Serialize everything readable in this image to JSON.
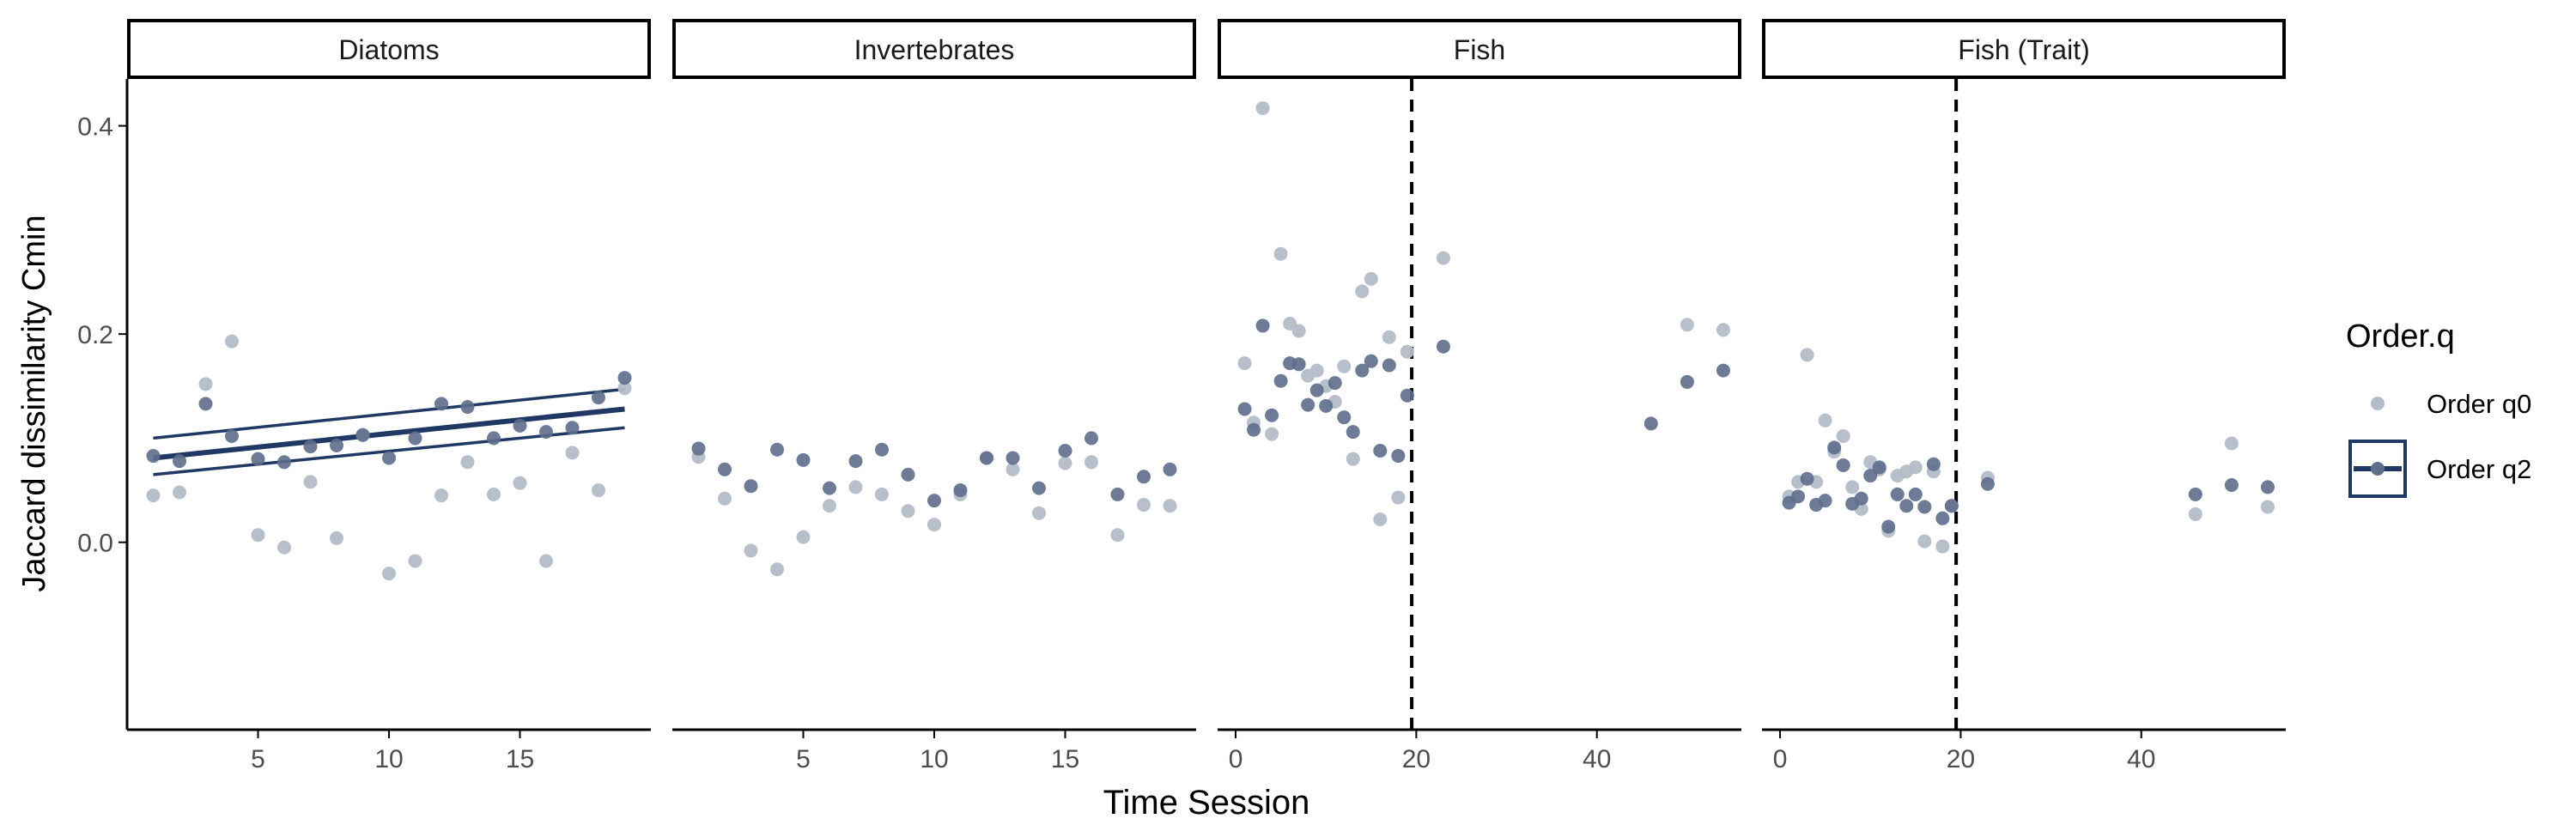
{
  "chart_data": {
    "type": "scatter",
    "ylabel": "Jaccard dissimilarity Cmin",
    "xlabel": "Time Session",
    "ylim": [
      -0.18,
      0.445
    ],
    "y_ticks": [
      0.0,
      0.2,
      0.4
    ],
    "grid": false,
    "colors": {
      "q0": "#b3bcc8",
      "q2": "#5d6d8c",
      "line": "#1f3864",
      "axis": "#000000",
      "strip_border": "#000000",
      "vline": "#000000"
    },
    "legend": {
      "title": "Order.q",
      "position": "right",
      "items": [
        {
          "key": "q0",
          "label": "Order q0"
        },
        {
          "key": "q2",
          "label": "Order q2"
        }
      ]
    },
    "panels": [
      {
        "title": "Diatoms",
        "xlim": [
          0,
          20
        ],
        "x_ticks": [
          5,
          10,
          15
        ],
        "vline": null,
        "series": {
          "q0": {
            "name": "Order q0",
            "x": [
              1,
              2,
              3,
              4,
              5,
              6,
              7,
              8,
              9,
              10,
              11,
              12,
              13,
              14,
              15,
              16,
              17,
              18,
              19
            ],
            "y": [
              0.045,
              0.048,
              0.152,
              0.193,
              0.007,
              -0.005,
              0.058,
              0.004,
              0.103,
              -0.03,
              -0.018,
              0.045,
              0.077,
              0.046,
              0.057,
              -0.018,
              0.086,
              0.05,
              0.148
            ]
          },
          "q2": {
            "name": "Order q2",
            "x": [
              1,
              2,
              3,
              4,
              5,
              6,
              7,
              8,
              9,
              10,
              11,
              12,
              13,
              14,
              15,
              16,
              17,
              18,
              19
            ],
            "y": [
              0.083,
              0.078,
              0.133,
              0.102,
              0.08,
              0.077,
              0.092,
              0.093,
              0.103,
              0.081,
              0.1,
              0.133,
              0.13,
              0.1,
              0.112,
              0.106,
              0.11,
              0.139,
              0.158
            ]
          }
        },
        "trend": {
          "x": [
            1,
            19
          ],
          "fit": [
            0.081,
            0.128
          ],
          "lower": [
            0.065,
            0.11
          ],
          "upper": [
            0.1,
            0.147
          ]
        }
      },
      {
        "title": "Invertebrates",
        "xlim": [
          0,
          20
        ],
        "x_ticks": [
          5,
          10,
          15
        ],
        "vline": null,
        "series": {
          "q0": {
            "name": "Order q0",
            "x": [
              1,
              2,
              3,
              4,
              5,
              6,
              7,
              8,
              9,
              10,
              11,
              12,
              13,
              14,
              15,
              16,
              17,
              18,
              19
            ],
            "y": [
              0.082,
              0.042,
              -0.008,
              -0.026,
              0.005,
              0.035,
              0.053,
              0.046,
              0.03,
              0.017,
              0.046,
              0.081,
              0.07,
              0.028,
              0.076,
              0.077,
              0.007,
              0.036,
              0.035
            ]
          },
          "q2": {
            "name": "Order q2",
            "x": [
              1,
              2,
              3,
              4,
              5,
              6,
              7,
              8,
              9,
              10,
              11,
              12,
              13,
              14,
              15,
              16,
              17,
              18,
              19
            ],
            "y": [
              0.09,
              0.07,
              0.054,
              0.089,
              0.079,
              0.052,
              0.078,
              0.089,
              0.065,
              0.04,
              0.05,
              0.081,
              0.081,
              0.052,
              0.088,
              0.1,
              0.046,
              0.063,
              0.07
            ]
          }
        },
        "trend": null
      },
      {
        "title": "Fish",
        "xlim": [
          -2,
          56
        ],
        "x_ticks": [
          0,
          20,
          40
        ],
        "vline": 19.5,
        "series": {
          "q0": {
            "name": "Order q0",
            "x": [
              1,
              2,
              3,
              4,
              5,
              6,
              7,
              8,
              9,
              10,
              11,
              12,
              13,
              14,
              15,
              16,
              17,
              18,
              19,
              23,
              50,
              54
            ],
            "y": [
              0.172,
              0.115,
              0.417,
              0.104,
              0.277,
              0.21,
              0.203,
              0.16,
              0.165,
              0.15,
              0.135,
              0.169,
              0.08,
              0.241,
              0.253,
              0.022,
              0.197,
              0.043,
              0.183,
              0.273,
              0.209,
              0.204
            ]
          },
          "q2": {
            "name": "Order q2",
            "x": [
              1,
              2,
              3,
              4,
              5,
              6,
              7,
              8,
              9,
              10,
              11,
              12,
              13,
              14,
              15,
              16,
              17,
              18,
              19,
              23,
              46,
              50,
              54
            ],
            "y": [
              0.128,
              0.108,
              0.208,
              0.122,
              0.155,
              0.172,
              0.171,
              0.132,
              0.146,
              0.131,
              0.153,
              0.12,
              0.106,
              0.165,
              0.174,
              0.088,
              0.17,
              0.083,
              0.141,
              0.188,
              0.114,
              0.154,
              0.165
            ]
          }
        },
        "trend": null
      },
      {
        "title": "Fish (Trait)",
        "xlim": [
          -2,
          56
        ],
        "x_ticks": [
          0,
          20,
          40
        ],
        "vline": 19.5,
        "series": {
          "q0": {
            "name": "Order q0",
            "x": [
              1,
              2,
              3,
              4,
              5,
              6,
              7,
              8,
              9,
              10,
              11,
              12,
              13,
              14,
              15,
              16,
              17,
              18,
              19,
              23,
              46,
              50,
              54
            ],
            "y": [
              0.044,
              0.058,
              0.18,
              0.058,
              0.117,
              0.087,
              0.102,
              0.053,
              0.032,
              0.077,
              0.07,
              0.011,
              0.064,
              0.068,
              0.072,
              0.001,
              0.068,
              -0.004,
              0.035,
              0.062,
              0.027,
              0.095,
              0.034
            ]
          },
          "q2": {
            "name": "Order q2",
            "x": [
              1,
              2,
              3,
              4,
              5,
              6,
              7,
              8,
              9,
              10,
              11,
              12,
              13,
              14,
              15,
              16,
              17,
              18,
              19,
              23,
              46,
              50,
              54
            ],
            "y": [
              0.038,
              0.044,
              0.061,
              0.036,
              0.04,
              0.091,
              0.074,
              0.037,
              0.042,
              0.064,
              0.072,
              0.015,
              0.046,
              0.035,
              0.046,
              0.034,
              0.075,
              0.023,
              0.035,
              0.056,
              0.046,
              0.055,
              0.053
            ]
          }
        },
        "trend": null
      }
    ]
  }
}
